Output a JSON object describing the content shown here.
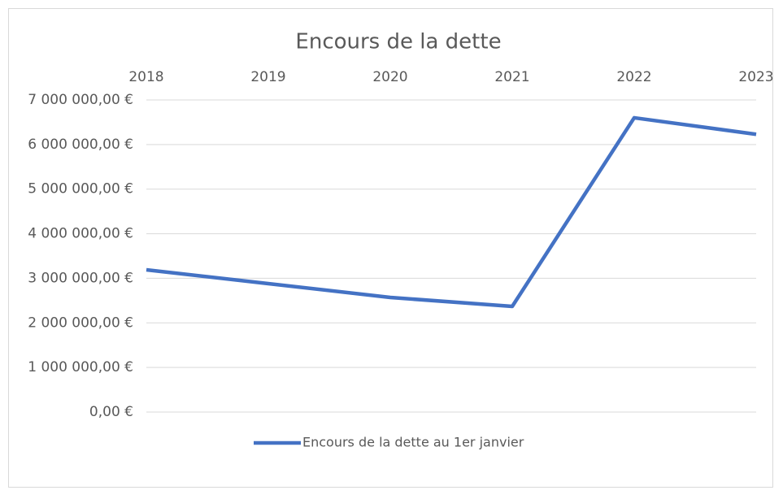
{
  "chart_data": {
    "type": "line",
    "title": "Encours de la dette",
    "categories": [
      "2018",
      "2019",
      "2020",
      "2021",
      "2022",
      "2023"
    ],
    "series": [
      {
        "name": "Encours de la dette au 1er janvier",
        "color": "#4472c4",
        "values": [
          3190000,
          2880000,
          2570000,
          2370000,
          6600000,
          6230000
        ]
      }
    ],
    "ylim": [
      0,
      7000000
    ],
    "yticks": [
      {
        "value": 0,
        "label": "0,00 €"
      },
      {
        "value": 1000000,
        "label": "1 000 000,00 €"
      },
      {
        "value": 2000000,
        "label": "2 000 000,00 €"
      },
      {
        "value": 3000000,
        "label": "3 000 000,00 €"
      },
      {
        "value": 4000000,
        "label": "4 000 000,00 €"
      },
      {
        "value": 5000000,
        "label": "5 000 000,00 €"
      },
      {
        "value": 6000000,
        "label": "6 000 000,00 €"
      },
      {
        "value": 7000000,
        "label": "7 000 000,00 €"
      }
    ],
    "grid": true,
    "legend": "bottom"
  }
}
